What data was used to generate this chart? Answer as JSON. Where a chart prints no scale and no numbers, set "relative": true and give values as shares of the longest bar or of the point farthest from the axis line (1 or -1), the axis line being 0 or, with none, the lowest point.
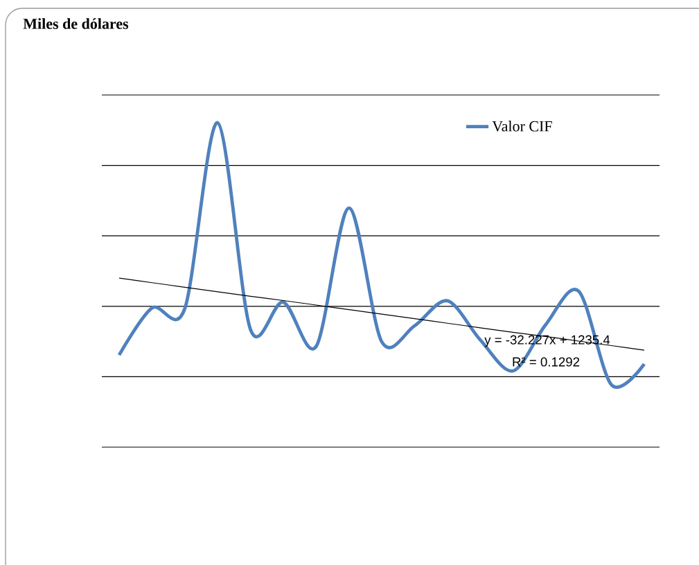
{
  "chart_data": {
    "type": "line",
    "title": "Miles de dólares",
    "relative": true,
    "categories": [
      null,
      null,
      null,
      null,
      null,
      null,
      null,
      null,
      null,
      null,
      null,
      null,
      null,
      null,
      null,
      null,
      null
    ],
    "series": [
      {
        "name": "Valor CIF",
        "color": "#4f81bd",
        "values": [
          0.284,
          0.429,
          0.427,
          1,
          0.363,
          0.447,
          0.31,
          0.737,
          0.325,
          0.374,
          0.451,
          0.331,
          0.235,
          0.378,
          0.481,
          0.192,
          0.256
        ]
      },
      {
        "type": "line",
        "color": "#000000",
        "values": [
          0.521,
          0.507,
          0.493,
          0.479,
          0.465,
          0.452,
          0.438,
          0.424,
          0.41,
          0.396,
          0.382,
          0.368,
          0.354,
          0.341,
          0.327,
          0.313,
          0.299
        ]
      }
    ],
    "annotations": [
      "y = -32.227x + 1235.4",
      "R² = 0.1292"
    ],
    "grid": true,
    "legend": "top right"
  }
}
